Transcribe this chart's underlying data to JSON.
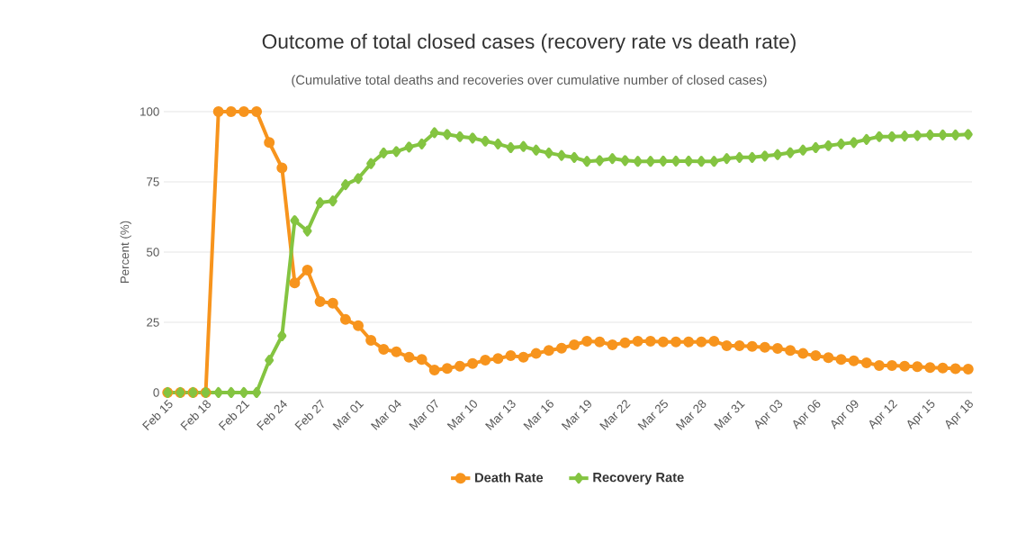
{
  "chart_data": {
    "type": "line",
    "title": "Outcome of total closed cases (recovery rate vs death rate)",
    "subtitle": "(Cumulative total deaths and recoveries over cumulative number of closed cases)",
    "ylabel": "Percent (%)",
    "categories": [
      "Feb 15",
      null,
      null,
      "Feb 18",
      null,
      null,
      "Feb 21",
      null,
      null,
      "Feb 24",
      null,
      null,
      "Feb 27",
      null,
      null,
      "Mar 01",
      null,
      null,
      "Mar 04",
      null,
      null,
      "Mar 07",
      null,
      null,
      "Mar 10",
      null,
      null,
      "Mar 13",
      null,
      null,
      "Mar 16",
      null,
      null,
      "Mar 19",
      null,
      null,
      "Mar 22",
      null,
      null,
      "Mar 25",
      null,
      null,
      "Mar 28",
      null,
      null,
      "Mar 31",
      null,
      null,
      "Apr 03",
      null,
      null,
      "Apr 06",
      null,
      null,
      "Apr 09",
      null,
      null,
      "Apr 12",
      null,
      null,
      "Apr 15",
      null,
      null,
      "Apr 18"
    ],
    "series": [
      {
        "name": "Death Rate",
        "color": "#f7941d",
        "marker": "circle",
        "values": [
          0,
          0,
          0,
          0,
          100,
          100,
          100,
          100,
          89,
          80,
          39,
          43.6,
          32.4,
          31.8,
          26,
          23.8,
          18.6,
          15.4,
          14.5,
          12.6,
          11.8,
          8,
          8.6,
          9.4,
          10.3,
          11.5,
          12.1,
          13.1,
          12.6,
          13.9,
          15,
          15.8,
          17,
          18.3,
          18,
          17,
          17.7,
          18.3,
          18.3,
          18,
          18,
          18,
          18,
          18.3,
          16.7,
          16.7,
          16.4,
          16.1,
          15.7,
          15,
          13.9,
          13.1,
          12.4,
          11.8,
          11.3,
          10.6,
          9.6,
          9.6,
          9.4,
          9.2,
          8.9,
          8.7,
          8.5,
          8.3
        ]
      },
      {
        "name": "Recovery Rate",
        "color": "#84c441",
        "marker": "diamond",
        "values": [
          0,
          0,
          0,
          0,
          0,
          0,
          0,
          0,
          11.5,
          20.2,
          61.2,
          57.5,
          67.6,
          68.2,
          74,
          76.2,
          81.5,
          85.3,
          85.8,
          87.4,
          88.5,
          92.5,
          91.9,
          91.1,
          90.6,
          89.5,
          88.5,
          87.2,
          87.6,
          86.3,
          85.3,
          84.4,
          83.7,
          82.3,
          82.6,
          83.3,
          82.6,
          82.3,
          82.3,
          82.4,
          82.4,
          82.4,
          82.3,
          82.3,
          83.3,
          83.7,
          83.7,
          84.2,
          84.7,
          85.4,
          86.3,
          87.2,
          87.9,
          88.5,
          89,
          90.1,
          91.1,
          91.1,
          91.3,
          91.5,
          91.7,
          91.7,
          91.7,
          91.9
        ]
      }
    ],
    "ylim": [
      0,
      100
    ],
    "yticks": [
      0,
      25,
      50,
      75,
      100
    ],
    "grid": "y",
    "legend": "bottom",
    "line_style": "solid"
  }
}
